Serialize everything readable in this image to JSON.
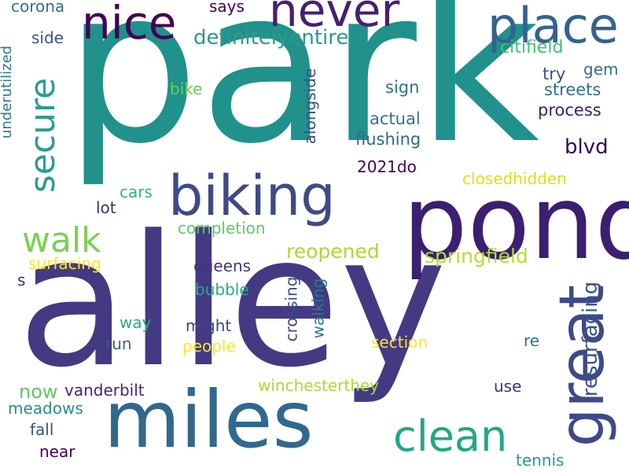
{
  "words": [
    {
      "text": "park",
      "color": "#21918c"
    },
    {
      "text": "alley",
      "color": "#443983"
    },
    {
      "text": "pond",
      "color": "#3b1f70"
    },
    {
      "text": "miles",
      "color": "#31688e"
    },
    {
      "text": "biking",
      "color": "#3e4a89"
    },
    {
      "text": "never",
      "color": "#481f70"
    },
    {
      "text": "place",
      "color": "#33638d"
    },
    {
      "text": "nice",
      "color": "#440154"
    },
    {
      "text": "great",
      "color": "#3e4989"
    },
    {
      "text": "clean",
      "color": "#22a884"
    },
    {
      "text": "secure",
      "color": "#2a9d8f"
    },
    {
      "text": "walk",
      "color": "#7ad151"
    },
    {
      "text": "definitelyentire",
      "color": "#2a9a8e"
    },
    {
      "text": "resurfacing",
      "color": "#3b528b"
    },
    {
      "text": "springfield",
      "color": "#b5de2b"
    },
    {
      "text": "reopened",
      "color": "#a8db34"
    },
    {
      "text": "blvd",
      "color": "#2f0a5b"
    },
    {
      "text": "citifield",
      "color": "#44bf70"
    },
    {
      "text": "streets",
      "color": "#2d708e"
    },
    {
      "text": "process",
      "color": "#3b1f70"
    },
    {
      "text": "actual",
      "color": "#2a788e"
    },
    {
      "text": "flushing",
      "color": "#31688e"
    },
    {
      "text": "sign",
      "color": "#2c728e"
    },
    {
      "text": "try",
      "color": "#3b528b"
    },
    {
      "text": "gem",
      "color": "#2c728e"
    },
    {
      "text": "alongside",
      "color": "#3b528b"
    },
    {
      "text": "2021do",
      "color": "#440154"
    },
    {
      "text": "closedhidden",
      "color": "#d8e219"
    },
    {
      "text": "crossing",
      "color": "#3e4a89"
    },
    {
      "text": "walking",
      "color": "#2a788e"
    },
    {
      "text": "queens",
      "color": "#46337e"
    },
    {
      "text": "bubble",
      "color": "#27ad81"
    },
    {
      "text": "might",
      "color": "#414487"
    },
    {
      "text": "people",
      "color": "#fde725"
    },
    {
      "text": "section",
      "color": "#fde725"
    },
    {
      "text": "completion",
      "color": "#5ec962"
    },
    {
      "text": "surfacing",
      "color": "#fde725"
    },
    {
      "text": "winchesterthey",
      "color": "#a8db34"
    },
    {
      "text": "vanderbilt",
      "color": "#482475"
    },
    {
      "text": "now",
      "color": "#5ec962"
    },
    {
      "text": "meadows",
      "color": "#21918c"
    },
    {
      "text": "fall",
      "color": "#3b528b"
    },
    {
      "text": "near",
      "color": "#440154"
    },
    {
      "text": "tennis",
      "color": "#1f9e89"
    },
    {
      "text": "use",
      "color": "#472d7b"
    },
    {
      "text": "re",
      "color": "#2c728e"
    },
    {
      "text": "run",
      "color": "#33638d"
    },
    {
      "text": "way",
      "color": "#27ad81"
    },
    {
      "text": "cars",
      "color": "#35b779"
    },
    {
      "text": "lot",
      "color": "#482878"
    },
    {
      "text": "bike",
      "color": "#6ece58"
    },
    {
      "text": "side",
      "color": "#3b528b"
    },
    {
      "text": "says",
      "color": "#440154"
    },
    {
      "text": "corona",
      "color": "#2c728e"
    },
    {
      "text": "underutilized",
      "color": "#2a788e"
    },
    {
      "text": "s",
      "color": "#482878"
    }
  ]
}
